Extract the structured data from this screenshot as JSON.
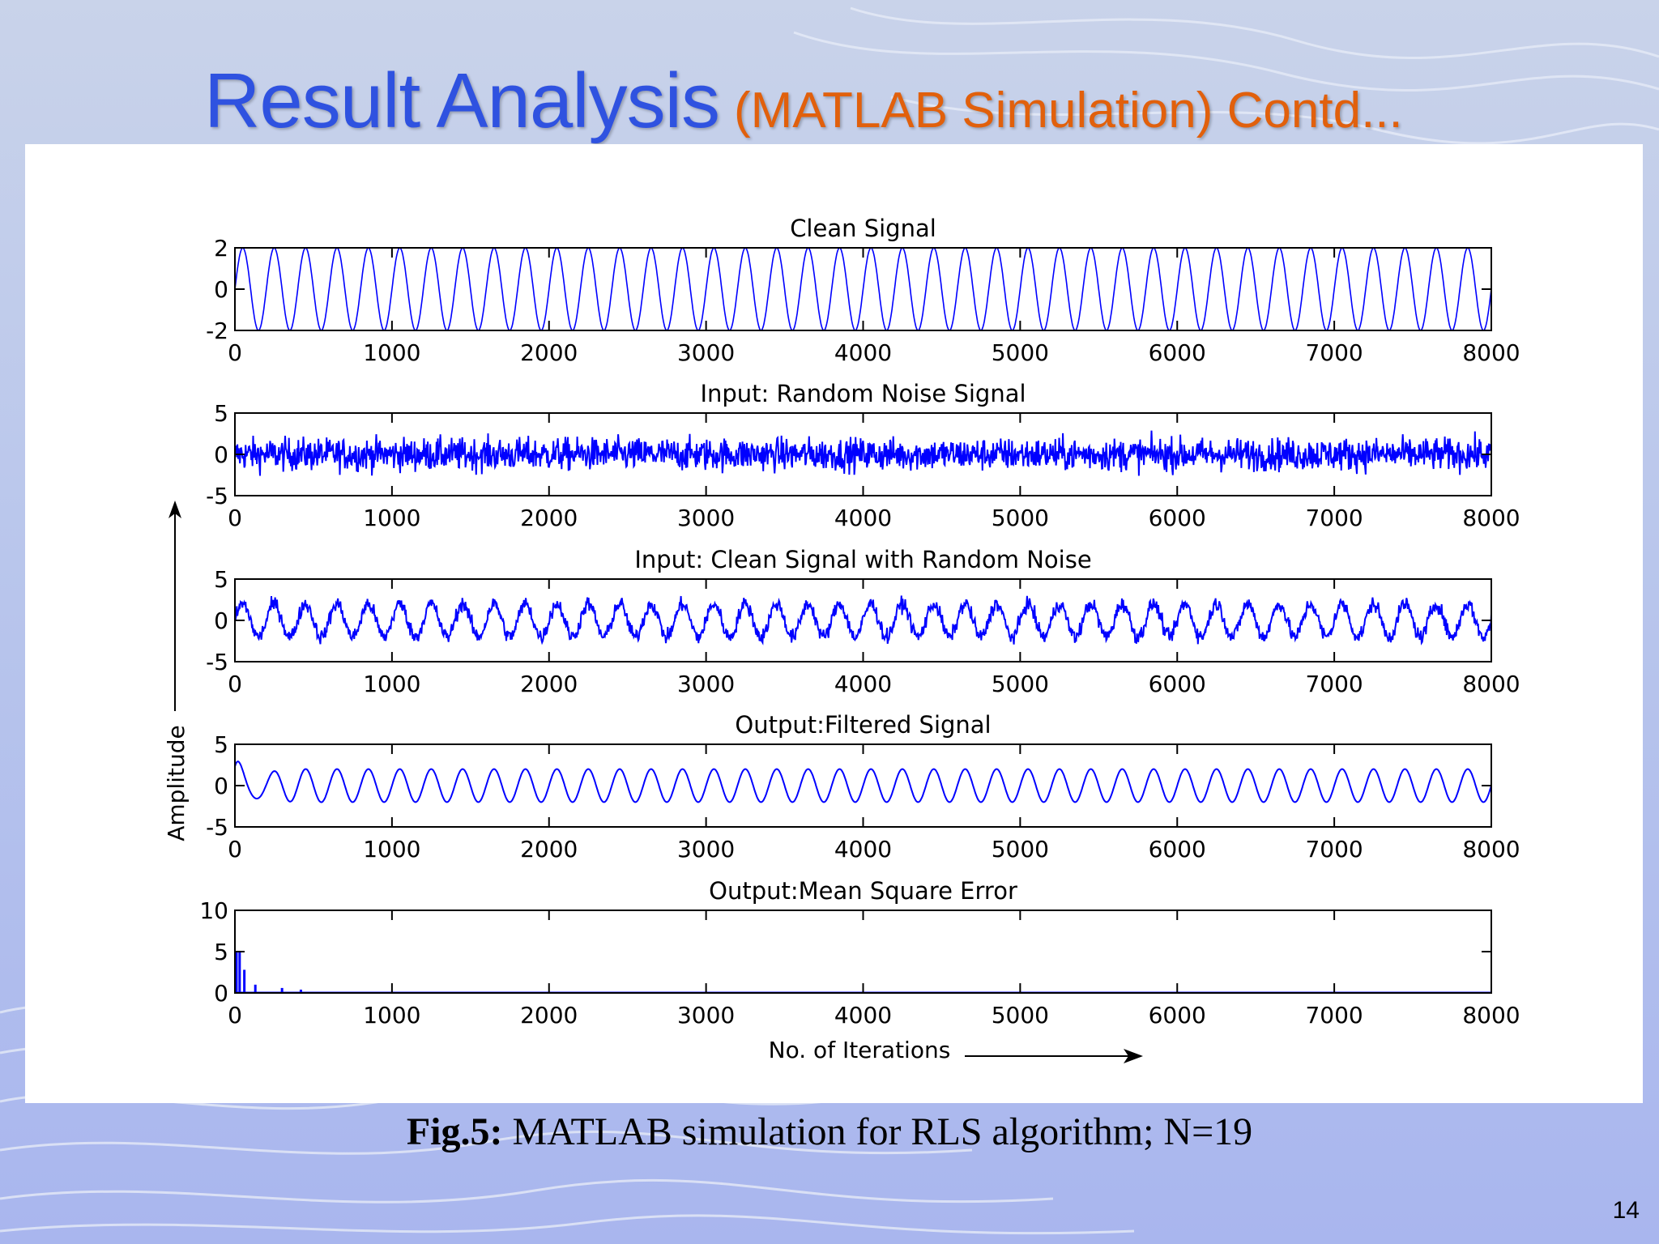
{
  "slide": {
    "title_main": "Result Analysis",
    "title_sub": "(MATLAB Simulation) Contd...",
    "caption_bold": "Fig.5:",
    "caption_text": " MATLAB simulation for RLS algorithm; N=19",
    "page_number": "14"
  },
  "colors": {
    "signal": "#0000ff",
    "axes": "#000000",
    "title_blue": "#2f52e0",
    "title_orange": "#e1600c"
  },
  "figure": {
    "ylabel": "Amplitude",
    "xlabel": "No. of Iterations"
  },
  "chart_data": [
    {
      "type": "line",
      "title": "Clean  Signal",
      "x_range": [
        0,
        8000
      ],
      "ylim": [
        -2,
        2
      ],
      "xticks": [
        "0",
        "1000",
        "2000",
        "3000",
        "4000",
        "5000",
        "6000",
        "7000",
        "8000"
      ],
      "yticks": [
        "2",
        "0",
        "-2"
      ],
      "series": [
        {
          "name": "clean",
          "kind": "sine",
          "amplitude": 2,
          "cycles": 40,
          "noise": 0,
          "transient": 0
        }
      ]
    },
    {
      "type": "line",
      "title": "Input: Random Noise Signal",
      "x_range": [
        0,
        8000
      ],
      "ylim": [
        -5,
        5
      ],
      "xticks": [
        "0",
        "1000",
        "2000",
        "3000",
        "4000",
        "5000",
        "6000",
        "7000",
        "8000"
      ],
      "yticks": [
        "5",
        "0",
        "-5"
      ],
      "series": [
        {
          "name": "noise",
          "kind": "noise",
          "amplitude": 0,
          "cycles": 0,
          "noise": 1.0,
          "transient": 0
        }
      ]
    },
    {
      "type": "line",
      "title": "Input: Clean  Signal with Random Noise",
      "x_range": [
        0,
        8000
      ],
      "ylim": [
        -5,
        5
      ],
      "xticks": [
        "0",
        "1000",
        "2000",
        "3000",
        "4000",
        "5000",
        "6000",
        "7000",
        "8000"
      ],
      "yticks": [
        "5",
        "0",
        "-5"
      ],
      "series": [
        {
          "name": "noisy",
          "kind": "sine+noise",
          "amplitude": 2,
          "cycles": 40,
          "noise": 0.45,
          "transient": 0
        }
      ]
    },
    {
      "type": "line",
      "title": "Output:Filtered  Signal",
      "x_range": [
        0,
        8000
      ],
      "ylim": [
        -5,
        5
      ],
      "xticks": [
        "0",
        "1000",
        "2000",
        "3000",
        "4000",
        "5000",
        "6000",
        "7000",
        "8000"
      ],
      "yticks": [
        "5",
        "0",
        "-5"
      ],
      "series": [
        {
          "name": "filtered",
          "kind": "sine",
          "amplitude": 2,
          "cycles": 40,
          "noise": 0,
          "transient": 4
        }
      ]
    },
    {
      "type": "line",
      "title": "Output:Mean Square Error",
      "x_range": [
        0,
        8000
      ],
      "ylim": [
        0,
        10
      ],
      "xticks": [
        "0",
        "1000",
        "2000",
        "3000",
        "4000",
        "5000",
        "6000",
        "7000",
        "8000"
      ],
      "yticks": [
        "10",
        "5",
        "0"
      ],
      "series": [
        {
          "name": "mse",
          "kind": "mse",
          "amplitude": 5,
          "cycles": 0,
          "noise": 0,
          "transient": 0,
          "spikes": [
            [
              10,
              5
            ],
            [
              30,
              5
            ],
            [
              60,
              2.8
            ],
            [
              130,
              1
            ],
            [
              300,
              0.6
            ],
            [
              420,
              0.4
            ]
          ]
        }
      ]
    }
  ]
}
